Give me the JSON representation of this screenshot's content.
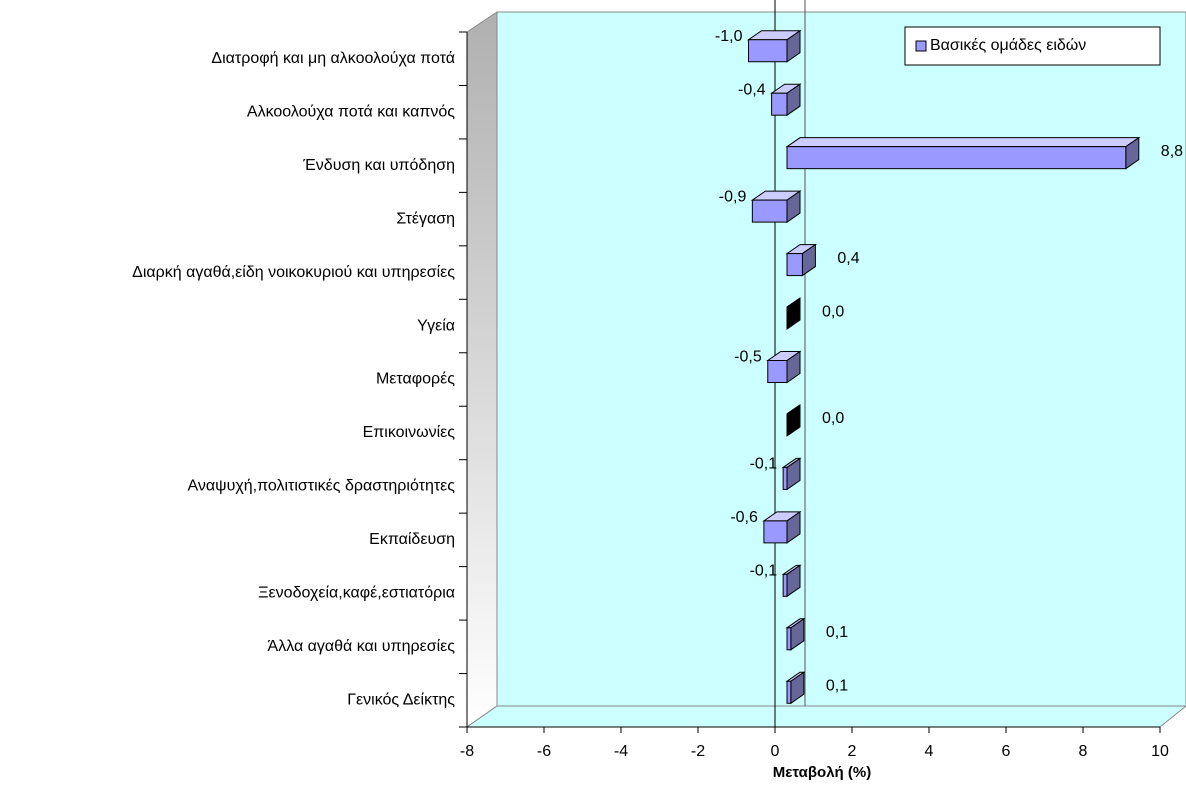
{
  "chart_data": {
    "type": "bar3d_horizontal",
    "categories": [
      "Διατροφή και μη αλκοολούχα ποτά",
      "Αλκοολούχα ποτά και καπνός",
      "Ένδυση και υπόδηση",
      "Στέγαση",
      "Διαρκή αγαθά,είδη νοικοκυριού και υπηρεσίες",
      "Υγεία",
      "Μεταφορές",
      "Επικοινωνίες",
      "Αναψυχή,πολιτιστικές δραστηριότητες",
      "Εκπαίδευση",
      "Ξενοδοχεία,καφέ,εστιατόρια",
      "Άλλα αγαθά και υπηρεσίες",
      "Γενικός Δείκτης"
    ],
    "series": [
      {
        "name": "Βασικές ομάδες ειδών",
        "color": "#9999ff",
        "values": [
          -1.0,
          -0.4,
          8.8,
          -0.9,
          0.4,
          0.0,
          -0.5,
          0.0,
          -0.1,
          -0.6,
          -0.1,
          0.1,
          0.1
        ],
        "value_labels": [
          "-1,0",
          "-0,4",
          "8,8",
          "-0,9",
          "0,4",
          "0,0",
          "-0,5",
          "0,0",
          "-0,1",
          "-0,6",
          "-0,1",
          "0,1",
          "0,1"
        ]
      }
    ],
    "xlabel": "Μεταβολή (%)",
    "xlim": [
      -8,
      10
    ],
    "xticks": [
      -8,
      -6,
      -4,
      -2,
      0,
      2,
      4,
      6,
      8,
      10
    ],
    "legend": "top-right"
  }
}
